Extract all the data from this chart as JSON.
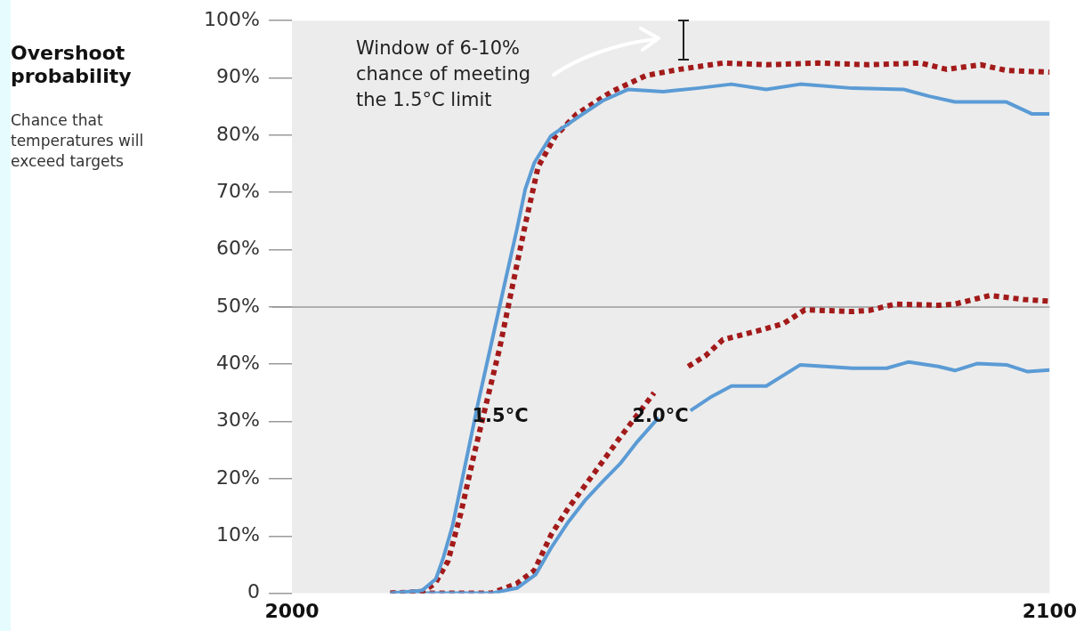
{
  "chart_data": {
    "type": "line",
    "title": "Overshoot probability",
    "subtitle": "Chance that temperatures will exceed targets",
    "xlim": [
      2000,
      2100
    ],
    "xticks": [
      2000,
      2100
    ],
    "ylim": [
      0,
      100
    ],
    "yticks": [
      {
        "value": 0,
        "label": "0"
      },
      {
        "value": 10,
        "label": "10%"
      },
      {
        "value": 20,
        "label": "20%"
      },
      {
        "value": 30,
        "label": "30%"
      },
      {
        "value": 40,
        "label": "40%"
      },
      {
        "value": 50,
        "label": "50%"
      },
      {
        "value": 60,
        "label": "60%"
      },
      {
        "value": 70,
        "label": "70%"
      },
      {
        "value": 80,
        "label": "80%"
      },
      {
        "value": 90,
        "label": "90%"
      },
      {
        "value": 100,
        "label": "100%"
      }
    ],
    "grid": false,
    "legend": false,
    "marker": "none",
    "ref_lines": [
      {
        "axis": "y",
        "value": 50,
        "color": "#9a9a9a"
      }
    ],
    "annotations": [
      "Window of 6-10% chance of meeting the 1.5°C limit",
      "1.5°C",
      "2.0°C"
    ],
    "series": [
      {
        "color": "#5b9bd5",
        "line_style": "solid",
        "x": [
          2013,
          2017.2,
          2019,
          2020,
          2021.2,
          2022.9,
          2024.6,
          2026.3,
          2028,
          2029.7,
          2030.8,
          2032,
          2034.2,
          2037.6,
          2041,
          2044.4,
          2049,
          2053.5,
          2058,
          2062.6,
          2067.1,
          2074,
          2080.7,
          2084.1,
          2087.5,
          2094.3,
          2097.7,
          2100
        ],
        "values": [
          0,
          0.5,
          2.5,
          6.3,
          11.8,
          22.6,
          33.4,
          43.5,
          53.6,
          63.6,
          70.6,
          75.2,
          79.9,
          83,
          86,
          88,
          87.6,
          88.2,
          88.9,
          88,
          88.9,
          88.2,
          88,
          86.8,
          85.8,
          85.8,
          83.7,
          83.7
        ]
      },
      {
        "color": "#a31a1a",
        "line_style": "dotted",
        "x": [
          2013,
          2017.2,
          2018.9,
          2020.6,
          2022.3,
          2024,
          2025.7,
          2027.4,
          2029.1,
          2030.8,
          2032.5,
          2034.8,
          2037.6,
          2042.2,
          2046.7,
          2051.2,
          2056.9,
          2062.6,
          2069.4,
          2076.2,
          2083,
          2086.4,
          2090.9,
          2094.3,
          2100
        ],
        "values": [
          0,
          0.3,
          1.7,
          5.6,
          14,
          24,
          33.4,
          42.7,
          53.6,
          64.4,
          74.5,
          79.9,
          83.7,
          87.6,
          90.4,
          91.5,
          92.6,
          92.3,
          92.6,
          92.3,
          92.6,
          91.5,
          92.3,
          91.3,
          91
        ]
      },
      {
        "color": "#5b9bd5",
        "line_style": "solid",
        "x": [
          2013,
          2026.3,
          2029.7,
          2032.2,
          2034.2,
          2036.5,
          2038.8,
          2041,
          2043.3,
          2045.6,
          2048.4,
          2050.5,
          2052.6,
          2055.2,
          2058,
          2062.6,
          2067.1,
          2074,
          2078.5,
          2081.4,
          2085.3,
          2087.5,
          2090.4,
          2094.3,
          2097.1,
          2100
        ],
        "values": [
          0,
          0,
          0.9,
          3.3,
          7.9,
          12.5,
          16.4,
          19.5,
          22.6,
          26.5,
          30.7,
          null,
          31.9,
          34.2,
          36.2,
          36.2,
          39.9,
          39.3,
          39.3,
          40.4,
          39.6,
          38.9,
          40.1,
          39.9,
          38.7,
          39
        ]
      },
      {
        "color": "#a31a1a",
        "line_style": "dotted",
        "x": [
          2013,
          2026.3,
          2029.7,
          2032,
          2034.2,
          2036.5,
          2039.9,
          2043.3,
          2047.8,
          2049.8,
          2052.3,
          2054.6,
          2056.9,
          2061.4,
          2064.9,
          2067.7,
          2074,
          2076.2,
          2079.6,
          2085.3,
          2087.5,
          2092.1,
          2096.6,
          2100
        ],
        "values": [
          0,
          0,
          1.7,
          4,
          10.2,
          14.9,
          21,
          27.2,
          35,
          null,
          39.6,
          41.5,
          44.3,
          45.8,
          47.1,
          49.5,
          49.2,
          49.4,
          50.5,
          50.3,
          50.5,
          52,
          51.3,
          51
        ]
      }
    ]
  }
}
